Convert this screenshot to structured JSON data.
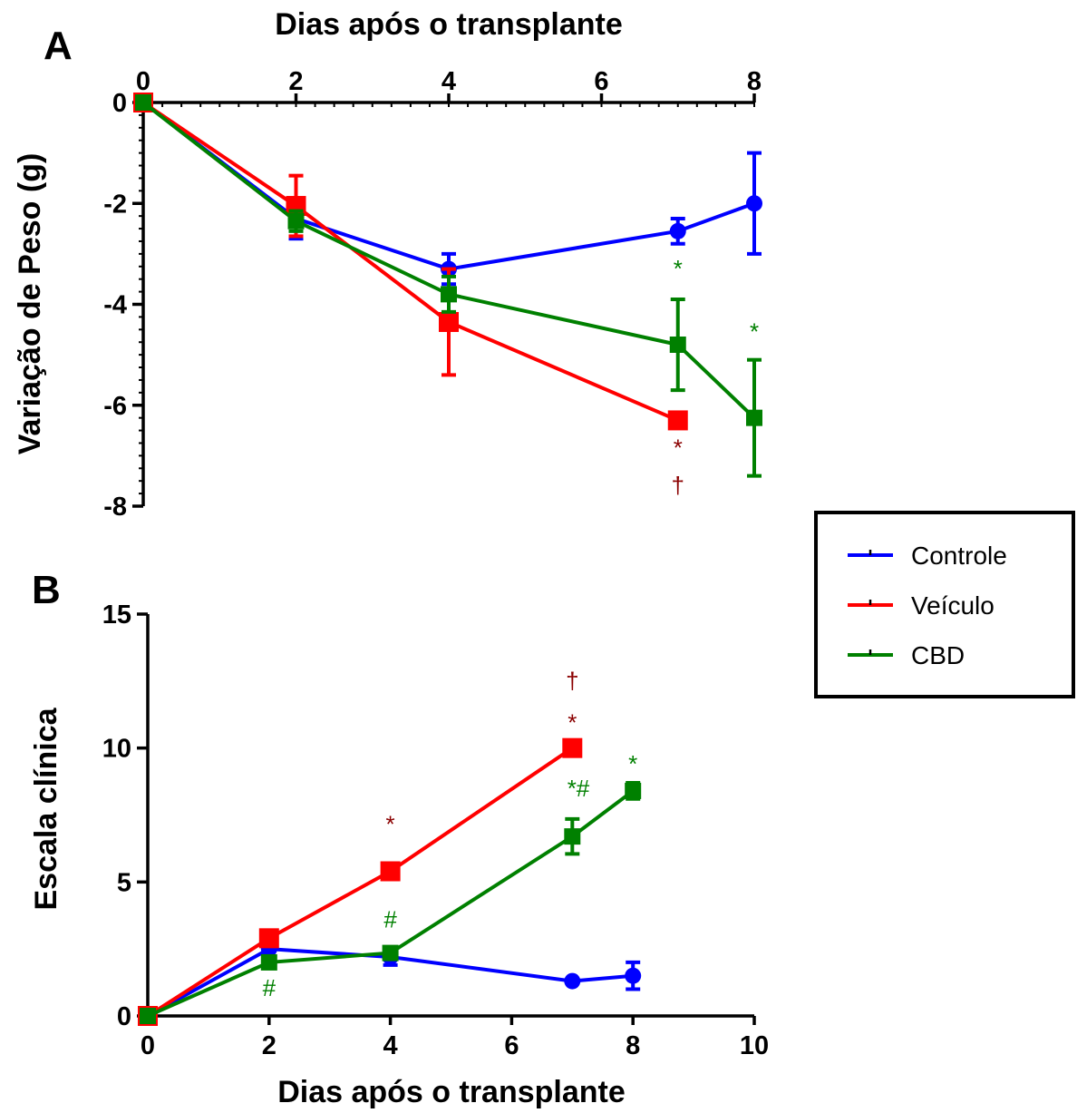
{
  "colors": {
    "Controle": "#0000ff",
    "Veículo": "#ff0000",
    "CBD": "#008000",
    "annot_red": "#8b0000",
    "annot_green": "#008000"
  },
  "legend": {
    "placement": "right",
    "entries": [
      "Controle",
      "Veículo",
      "CBD"
    ]
  },
  "chart_data": [
    {
      "panel": "A",
      "type": "line",
      "xlabel": "Dias após o transplante",
      "xlabel_position": "top",
      "ylabel": "Variação de Peso (g)",
      "xlim": [
        0,
        8
      ],
      "ylim": [
        -8,
        0
      ],
      "xticks": [
        0,
        2,
        4,
        6,
        8
      ],
      "yticks": [
        0,
        -2,
        -4,
        -6,
        -8
      ],
      "xtick_labels": [
        "0",
        "2",
        "4",
        "6",
        "8"
      ],
      "ytick_labels": [
        "0",
        "-2",
        "-4",
        "-6",
        "-8"
      ],
      "grid": false,
      "series": [
        {
          "name": "Controle",
          "marker": "circle",
          "x": [
            0,
            2,
            4,
            7,
            8
          ],
          "y": [
            0,
            -2.3,
            -3.3,
            -2.55,
            -2.0
          ],
          "err": [
            0,
            0.4,
            0.3,
            0.25,
            1.0
          ]
        },
        {
          "name": "Veículo",
          "marker": "square",
          "x": [
            0,
            2,
            4,
            7
          ],
          "y": [
            0,
            -2.05,
            -4.35,
            -6.3
          ],
          "err": [
            0,
            0.6,
            1.05,
            0
          ]
        },
        {
          "name": "CBD",
          "marker": "square",
          "x": [
            0,
            2,
            4,
            7,
            8
          ],
          "y": [
            0,
            -2.35,
            -3.8,
            -4.8,
            -6.25
          ],
          "err": [
            0,
            0.2,
            0.35,
            0.9,
            1.15
          ]
        }
      ],
      "annotations": [
        {
          "text": "*",
          "x": 7,
          "y": -3.45,
          "color": "annot_green"
        },
        {
          "text": "*",
          "x": 8,
          "y": -4.7,
          "color": "annot_green"
        },
        {
          "text": "*",
          "x": 7,
          "y": -7.0,
          "color": "annot_red"
        },
        {
          "text": "†",
          "x": 7,
          "y": -7.75,
          "color": "annot_red"
        }
      ]
    },
    {
      "panel": "B",
      "type": "line",
      "xlabel": "Dias após o transplante",
      "xlabel_position": "bottom",
      "ylabel": "Escala clínica",
      "xlim": [
        0,
        10
      ],
      "ylim": [
        0,
        15
      ],
      "xticks": [
        0,
        2,
        4,
        6,
        8,
        10
      ],
      "yticks": [
        0,
        5,
        10,
        15
      ],
      "xtick_labels": [
        "0",
        "2",
        "4",
        "6",
        "8",
        "10"
      ],
      "ytick_labels": [
        "0",
        "5",
        "10",
        "15"
      ],
      "grid": false,
      "series": [
        {
          "name": "Controle",
          "marker": "circle",
          "x": [
            0,
            2,
            4,
            7,
            8
          ],
          "y": [
            0,
            2.5,
            2.2,
            1.3,
            1.5
          ],
          "err": [
            0,
            0,
            0.3,
            0,
            0.5
          ]
        },
        {
          "name": "Veículo",
          "marker": "square",
          "x": [
            0,
            2,
            4,
            7
          ],
          "y": [
            0,
            2.9,
            5.4,
            10.0
          ],
          "err": [
            0,
            0,
            0,
            0
          ]
        },
        {
          "name": "CBD",
          "marker": "square",
          "x": [
            0,
            2,
            4,
            7,
            8
          ],
          "y": [
            0,
            2.0,
            2.35,
            6.7,
            8.4
          ],
          "err": [
            0,
            0,
            0,
            0.65,
            0.3
          ]
        }
      ],
      "annotations": [
        {
          "text": "†",
          "x": 7,
          "y": 12.2,
          "color": "annot_red"
        },
        {
          "text": "*",
          "x": 7,
          "y": 10.65,
          "color": "annot_red"
        },
        {
          "text": "*",
          "x": 4,
          "y": 6.85,
          "color": "annot_red"
        },
        {
          "text": "*",
          "x": 8,
          "y": 9.1,
          "color": "annot_green"
        },
        {
          "text": "*#",
          "x": 7.1,
          "y": 8.2,
          "color": "annot_green"
        },
        {
          "text": "#",
          "x": 4,
          "y": 3.3,
          "color": "annot_green"
        },
        {
          "text": "#",
          "x": 2,
          "y": 0.75,
          "color": "annot_green"
        }
      ]
    }
  ]
}
